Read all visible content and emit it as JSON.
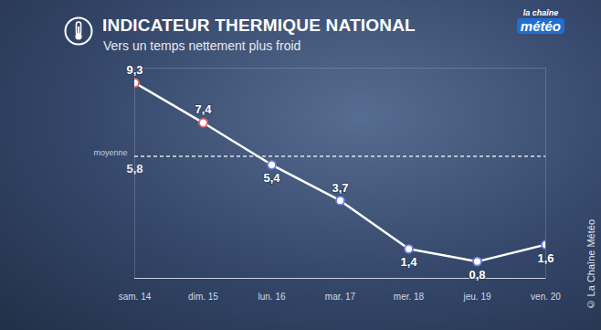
{
  "chart_data": {
    "type": "line",
    "title": "INDICATEUR THERMIQUE NATIONAL",
    "subtitle": "Vers un temps nettement plus froid",
    "categories": [
      "sam. 14",
      "dim. 15",
      "lun. 16",
      "mar. 17",
      "mer. 18",
      "jeu. 19",
      "ven. 20"
    ],
    "values": [
      9.3,
      7.4,
      5.4,
      3.7,
      1.4,
      0.8,
      1.6
    ],
    "value_labels": [
      "9,3",
      "7,4",
      "5,4",
      "3,7",
      "1,4",
      "0,8",
      "1,6"
    ],
    "data_labels": true,
    "average": 5.8,
    "average_label": "moyenne",
    "average_value_label": "5,8",
    "ylim": [
      0,
      10
    ],
    "yticks": [],
    "tick_labels": "x",
    "grid": false,
    "color": "#ffffff",
    "colors": [
      "#e8606a",
      "#e8606a",
      "#6a78e0",
      "#6a78e0",
      "#6a78e0",
      "#6a78e0",
      "#6a78e0"
    ],
    "marker": "circle",
    "line_style": "solid",
    "logo": [
      "la chaîne",
      "météo"
    ],
    "copyright": "© La Chaîne Météo"
  }
}
